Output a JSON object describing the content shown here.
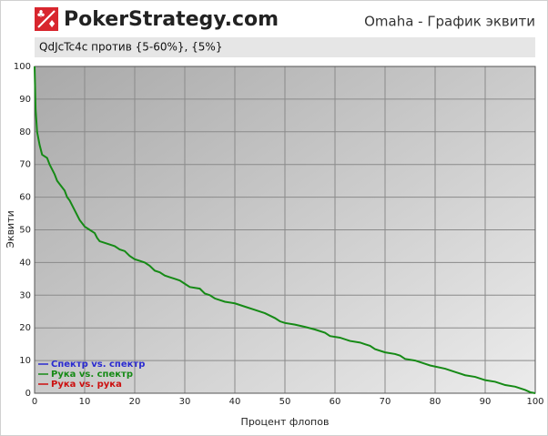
{
  "header": {
    "logo": "PokerStrategy.com"
  },
  "chart_data": {
    "type": "line",
    "title": "Omaha - График эквити",
    "subtitle": "QdJcTc4c против {5-60%}, {5%}",
    "x_label": "Процент флопов",
    "y_label": "Эквити",
    "xlim": [
      0,
      100
    ],
    "ylim": [
      0,
      100
    ],
    "xticks": [
      0,
      10,
      20,
      30,
      40,
      50,
      60,
      70,
      80,
      90,
      100
    ],
    "yticks": [
      0,
      10,
      20,
      30,
      40,
      50,
      60,
      70,
      80,
      90,
      100
    ],
    "grid": true,
    "legend": "lower left",
    "x": [
      0,
      0.2,
      0.5,
      1,
      1.5,
      2.5,
      3,
      4,
      4.5,
      5,
      6,
      6.5,
      7,
      8,
      9,
      10,
      11,
      12,
      12.5,
      13,
      14,
      16,
      17,
      18,
      19,
      20,
      21,
      22,
      23,
      24,
      25,
      26,
      27,
      28,
      29,
      30,
      31,
      33,
      34,
      35,
      36,
      38,
      40,
      42,
      44,
      46,
      48,
      49,
      50,
      52,
      54,
      56,
      58,
      59,
      61,
      63,
      65,
      66,
      67,
      68,
      70,
      72,
      73,
      74,
      76,
      78,
      79,
      82,
      84,
      86,
      88,
      90,
      92,
      94,
      96,
      98,
      99,
      100
    ],
    "series": [
      {
        "name": "Спектр vs. спектр",
        "color": "#2a2ad0",
        "values": null
      },
      {
        "name": "Рука vs. спектр",
        "color": "#168a16",
        "values": [
          100,
          87,
          80,
          76,
          73,
          72,
          70,
          67,
          65,
          64,
          62,
          60,
          59,
          56,
          53,
          51,
          50,
          49,
          47.5,
          46.5,
          46,
          45,
          44,
          43.5,
          42,
          41,
          40.5,
          40,
          39,
          37.5,
          37,
          36,
          35.5,
          35,
          34.5,
          33.5,
          32.5,
          32,
          30.5,
          30,
          29,
          28,
          27.5,
          26.5,
          25.5,
          24.5,
          23,
          22,
          21.5,
          21,
          20.3,
          19.5,
          18.5,
          17.5,
          17,
          16,
          15.5,
          15,
          14.5,
          13.5,
          12.5,
          12,
          11.5,
          10.5,
          10,
          9,
          8.5,
          7.5,
          6.5,
          5.5,
          5,
          4,
          3.5,
          2.5,
          2,
          1,
          0.3,
          0
        ]
      },
      {
        "name": "Рука vs. рука",
        "color": "#cc1010",
        "values": null
      }
    ]
  }
}
